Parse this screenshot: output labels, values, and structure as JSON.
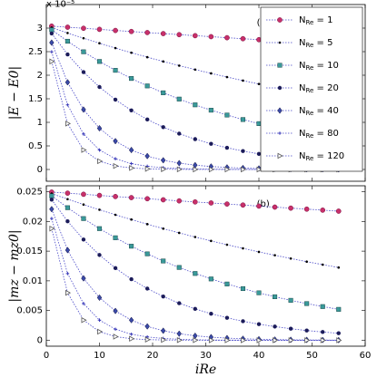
{
  "chart_data": [
    {
      "type": "line",
      "y_label": "|E − E0|",
      "y_multiplier": "x 10⁻⁵",
      "annotation": "(a)",
      "legend": "upper right",
      "x": [
        1,
        4,
        7,
        10,
        13,
        16,
        19,
        22,
        25,
        28,
        31,
        34,
        37,
        40,
        43,
        46,
        49,
        52,
        55
      ],
      "xlim": [
        0,
        60
      ],
      "ylim": [
        -0.25,
        3.5
      ],
      "yticks": [
        0,
        0.5,
        1,
        1.5,
        2,
        2.5,
        3
      ],
      "series": [
        {
          "name": "NRe = 1",
          "color": "#c8306a",
          "marker": "circle",
          "values": [
            3.042,
            3.019,
            2.996,
            2.973,
            2.95,
            2.928,
            2.905,
            2.883,
            2.861,
            2.839,
            2.818,
            2.796,
            2.775,
            2.754,
            2.733,
            2.712,
            2.691,
            2.671,
            2.65
          ]
        },
        {
          "name": "NRe = 5",
          "color": "#000000",
          "marker": "point",
          "values": [
            3.011,
            2.896,
            2.785,
            2.679,
            2.576,
            2.478,
            2.383,
            2.292,
            2.204,
            2.12,
            2.039,
            1.961,
            1.886,
            1.814,
            1.745,
            1.678,
            1.614,
            1.552,
            1.493
          ]
        },
        {
          "name": "NRe = 10",
          "color": "#3a9a9a",
          "marker": "square",
          "values": [
            2.964,
            2.721,
            2.497,
            2.292,
            2.104,
            1.931,
            1.773,
            1.627,
            1.494,
            1.371,
            1.258,
            1.155,
            1.06,
            0.973,
            0.893,
            0.82,
            0.752,
            0.691,
            0.634
          ]
        },
        {
          "name": "NRe = 20",
          "color": "#1c1c5a",
          "marker": "dot",
          "values": [
            2.885,
            2.442,
            2.067,
            1.75,
            1.481,
            1.254,
            1.061,
            0.898,
            0.76,
            0.644,
            0.545,
            0.461,
            0.39,
            0.33,
            0.28,
            0.237,
            0.2,
            0.17,
            0.144
          ]
        },
        {
          "name": "NRe = 40",
          "color": "#3a4aa8",
          "marker": "diamond",
          "values": [
            2.692,
            1.85,
            1.271,
            0.874,
            0.601,
            0.413,
            0.284,
            0.195,
            0.134,
            0.092,
            0.063,
            0.044,
            0.03,
            0.021,
            0.014,
            0.01,
            0.007,
            0.005,
            0.003
          ]
        },
        {
          "name": "NRe = 80",
          "color": "#3a3ab8",
          "marker": "plus",
          "values": [
            2.497,
            1.37,
            0.752,
            0.413,
            0.227,
            0.124,
            0.068,
            0.037,
            0.021,
            0.011,
            0.006,
            0.003,
            0.002,
            0.001,
            0.001,
            0,
            0,
            0,
            0
          ]
        },
        {
          "name": "NRe = 120",
          "color": "#555555",
          "marker": "triangle",
          "values": [
            2.292,
            0.973,
            0.413,
            0.175,
            0.074,
            0.032,
            0.013,
            0.006,
            0.002,
            0.001,
            0,
            0,
            0,
            0,
            0,
            0,
            0,
            0,
            0
          ]
        }
      ]
    },
    {
      "type": "line",
      "y_label": "|mz − mz0|",
      "x_label": "iRe",
      "annotation": "(b)",
      "x": [
        1,
        4,
        7,
        10,
        13,
        16,
        19,
        22,
        25,
        28,
        31,
        34,
        37,
        40,
        43,
        46,
        49,
        52,
        55
      ],
      "xlim": [
        0,
        60
      ],
      "xticks": [
        0,
        10,
        20,
        30,
        40,
        50,
        60
      ],
      "ylim": [
        -0.001,
        0.026
      ],
      "yticks": [
        0,
        0.005,
        0.01,
        0.015,
        0.02,
        0.025
      ],
      "series": [
        {
          "color": "#c8306a",
          "marker": "circle",
          "values": [
            0.02494,
            0.02476,
            0.02457,
            0.02438,
            0.02419,
            0.02401,
            0.02382,
            0.02364,
            0.02346,
            0.02328,
            0.02311,
            0.02293,
            0.02276,
            0.02258,
            0.02241,
            0.02224,
            0.02207,
            0.0219,
            0.02173
          ]
        },
        {
          "color": "#000000",
          "marker": "point",
          "values": [
            0.02469,
            0.02375,
            0.02284,
            0.02197,
            0.02112,
            0.02032,
            0.01954,
            0.01879,
            0.01807,
            0.01738,
            0.01672,
            0.01608,
            0.01547,
            0.01487,
            0.01431,
            0.01376,
            0.01323,
            0.01273,
            0.01224
          ]
        },
        {
          "color": "#3a9a9a",
          "marker": "square",
          "values": [
            0.0243,
            0.02231,
            0.02048,
            0.01879,
            0.01725,
            0.01583,
            0.01454,
            0.01334,
            0.01225,
            0.01124,
            0.01032,
            0.00947,
            0.00869,
            0.00798,
            0.00732,
            0.00672,
            0.00617,
            0.00567,
            0.0052
          ]
        },
        {
          "color": "#1c1c5a",
          "marker": "dot",
          "values": [
            0.02366,
            0.02002,
            0.01695,
            0.01435,
            0.01214,
            0.01028,
            0.0087,
            0.00736,
            0.00623,
            0.00528,
            0.00447,
            0.00378,
            0.0032,
            0.00271,
            0.0023,
            0.00194,
            0.00164,
            0.00139,
            0.00118
          ]
        },
        {
          "color": "#3a4aa8",
          "marker": "diamond",
          "values": [
            0.02207,
            0.01517,
            0.01042,
            0.00717,
            0.00493,
            0.00339,
            0.00233,
            0.0016,
            0.0011,
            0.00075,
            0.00052,
            0.00036,
            0.00025,
            0.00017,
            0.00011,
            8e-05,
            6e-05,
            4e-05,
            2e-05
          ]
        },
        {
          "color": "#3a3ab8",
          "marker": "plus",
          "values": [
            0.02048,
            0.01123,
            0.00617,
            0.00339,
            0.00186,
            0.00102,
            0.00056,
            0.0003,
            0.00017,
            9e-05,
            5e-05,
            2e-05,
            2e-05,
            1e-05,
            1e-05,
            0,
            0,
            0,
            0
          ]
        },
        {
          "color": "#555555",
          "marker": "triangle",
          "values": [
            0.01879,
            0.00798,
            0.00339,
            0.00144,
            0.00061,
            0.00026,
            0.00011,
            5e-05,
            2e-05,
            1e-05,
            0,
            0,
            0,
            0,
            0,
            0,
            0,
            0,
            0
          ]
        }
      ]
    }
  ]
}
